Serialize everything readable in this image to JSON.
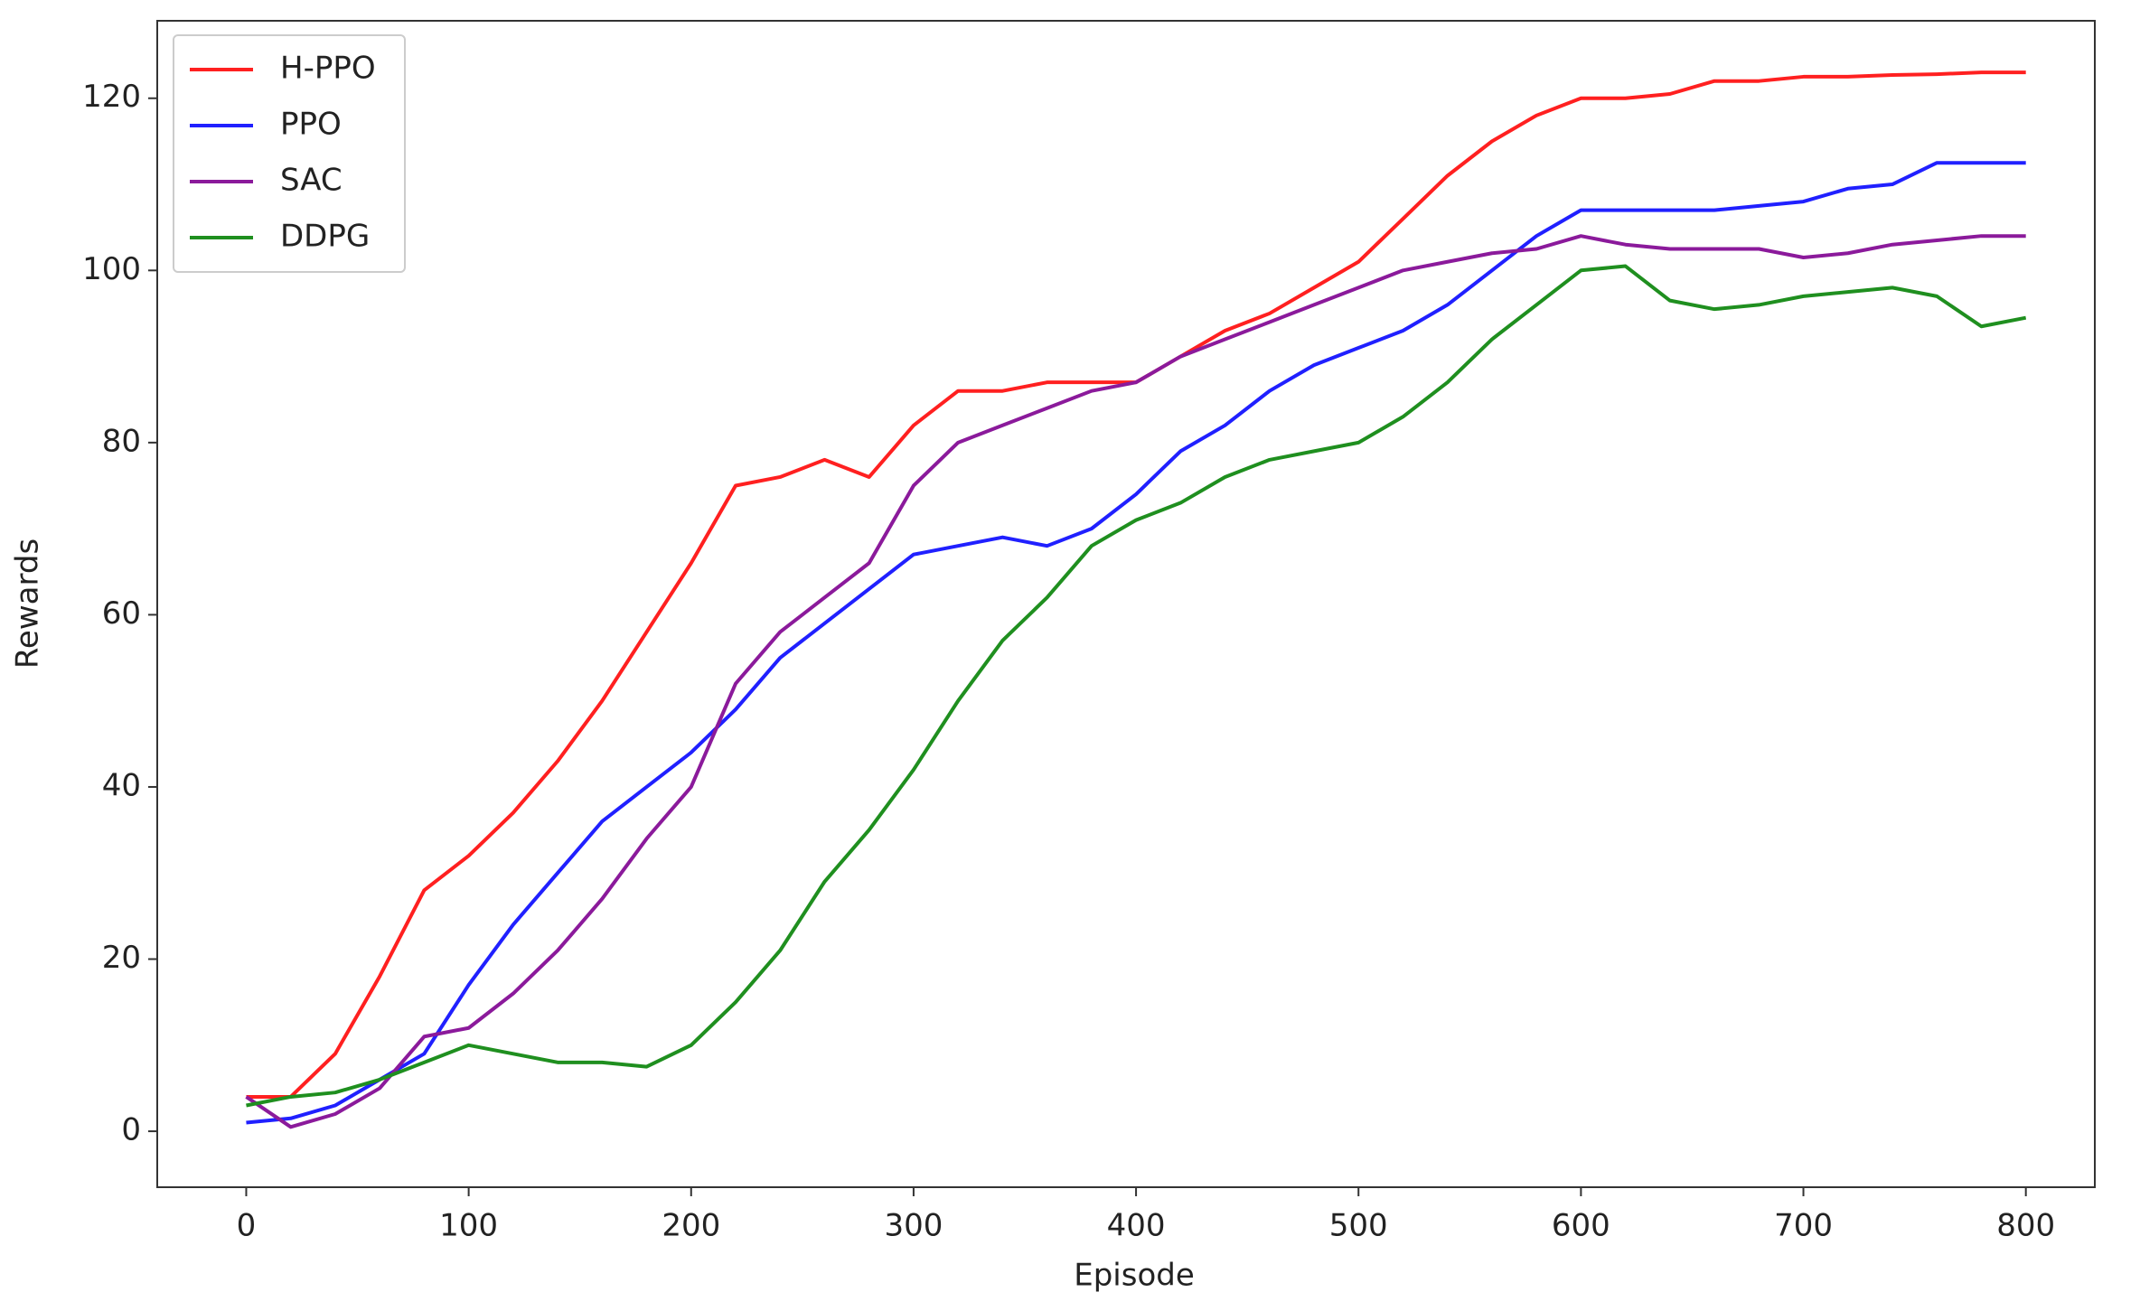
{
  "chart_data": {
    "type": "line",
    "x_label": "Episode",
    "y_label": "Rewards",
    "x": [
      0,
      20,
      40,
      60,
      80,
      100,
      120,
      140,
      160,
      180,
      200,
      220,
      240,
      260,
      280,
      300,
      320,
      340,
      360,
      380,
      400,
      420,
      440,
      460,
      480,
      500,
      520,
      540,
      560,
      580,
      600,
      620,
      640,
      660,
      680,
      700,
      720,
      740,
      760,
      780,
      800
    ],
    "series": [
      {
        "name": "H-PPO",
        "color": "#ff2020",
        "values": [
          4,
          4,
          9,
          18,
          28,
          32,
          37,
          43,
          50,
          58,
          66,
          75,
          76,
          78,
          76,
          82,
          86,
          86,
          87,
          87,
          87,
          90,
          93,
          95,
          98,
          101,
          106,
          111,
          115,
          118,
          120,
          120,
          120.5,
          122,
          122,
          122.5,
          122.5,
          122.7,
          122.8,
          123,
          123
        ]
      },
      {
        "name": "PPO",
        "color": "#2020ff",
        "values": [
          1,
          1.5,
          3,
          6,
          9,
          17,
          24,
          30,
          36,
          40,
          44,
          49,
          55,
          59,
          63,
          67,
          68,
          69,
          68,
          70,
          74,
          79,
          82,
          86,
          89,
          91,
          93,
          96,
          100,
          104,
          107,
          107,
          107,
          107,
          107.5,
          108,
          109.5,
          110,
          112.5,
          112.5,
          112.5
        ]
      },
      {
        "name": "SAC",
        "color": "#8b1a9b",
        "values": [
          4,
          0.5,
          2,
          5,
          11,
          12,
          16,
          21,
          27,
          34,
          40,
          52,
          58,
          62,
          66,
          75,
          80,
          82,
          84,
          86,
          87,
          90,
          92,
          94,
          96,
          98,
          100,
          101,
          102,
          102.5,
          104,
          103,
          102.5,
          102.5,
          102.5,
          101.5,
          102,
          103,
          103.5,
          104,
          104
        ]
      },
      {
        "name": "DDPG",
        "color": "#1f8f1f",
        "values": [
          3,
          4,
          4.5,
          6,
          8,
          10,
          9,
          8,
          8,
          7.5,
          10,
          15,
          21,
          29,
          35,
          42,
          50,
          57,
          62,
          68,
          71,
          73,
          76,
          78,
          79,
          80,
          83,
          87,
          92,
          96,
          100,
          100.5,
          96.5,
          95.5,
          96,
          97,
          97.5,
          98,
          97,
          93.5,
          94.5
        ]
      }
    ],
    "xlim": [
      -40,
      831
    ],
    "ylim": [
      -6.5,
      129
    ],
    "xticks": [
      0,
      100,
      200,
      300,
      400,
      500,
      600,
      700,
      800
    ],
    "yticks": [
      0,
      20,
      40,
      60,
      80,
      100,
      120
    ],
    "legend": "upper left"
  }
}
